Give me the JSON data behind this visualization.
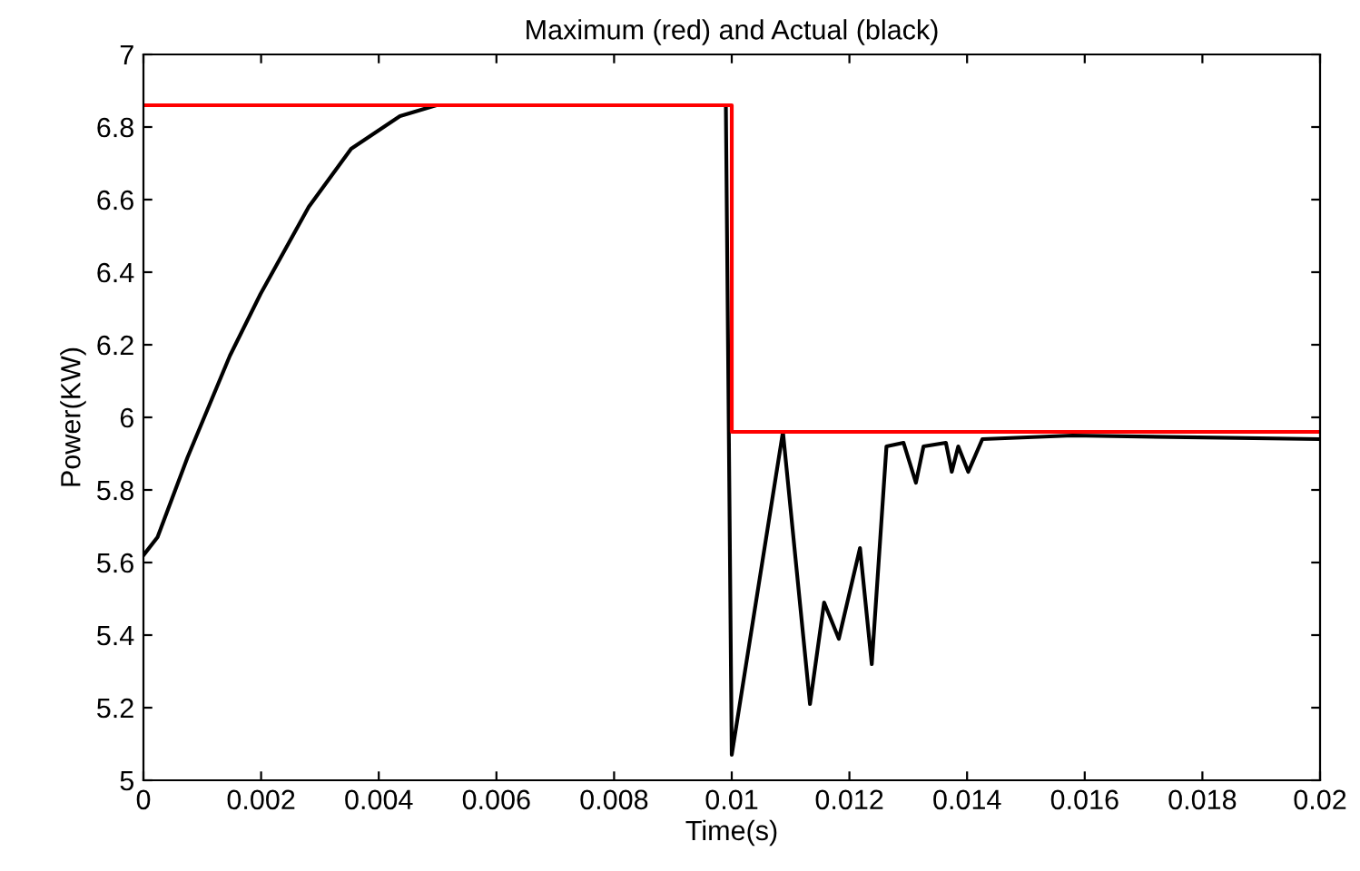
{
  "chart_data": {
    "type": "line",
    "title": "Maximum (red) and Actual (black)",
    "xlabel": "Time(s)",
    "ylabel": "Power(KW)",
    "series": [
      {
        "color": "#ff0000",
        "x": [
          0,
          0.01,
          0.01,
          0.01,
          0.02
        ],
        "values": [
          6.86,
          6.86,
          6.41,
          5.96,
          5.96
        ]
      },
      {
        "color": "#000000",
        "x": [
          0,
          0.00024,
          0.00075,
          0.00147,
          0.00199,
          0.00281,
          0.00353,
          0.00436,
          0.00498,
          0.0099,
          0.01,
          0.01087,
          0.01133,
          0.01157,
          0.01182,
          0.01218,
          0.01238,
          0.01263,
          0.01292,
          0.01313,
          0.01326,
          0.01364,
          0.01374,
          0.01385,
          0.01402,
          0.01426,
          0.01579,
          0.02
        ],
        "values": [
          5.62,
          5.67,
          5.89,
          6.17,
          6.34,
          6.58,
          6.74,
          6.83,
          6.86,
          6.86,
          5.07,
          5.96,
          5.21,
          5.49,
          5.39,
          5.64,
          5.32,
          5.92,
          5.93,
          5.82,
          5.92,
          5.93,
          5.85,
          5.92,
          5.85,
          5.94,
          5.95,
          5.94
        ]
      }
    ],
    "xlim": [
      0,
      0.02
    ],
    "xticks": [
      0,
      0.002,
      0.004,
      0.006,
      0.008,
      0.01,
      0.012,
      0.014,
      0.016,
      0.018,
      0.02
    ],
    "ylim": [
      5,
      7
    ],
    "yticks": [
      5,
      5.2,
      5.4,
      5.6,
      5.8,
      6,
      6.2,
      6.4,
      6.6,
      6.8,
      7
    ],
    "grid": false
  }
}
